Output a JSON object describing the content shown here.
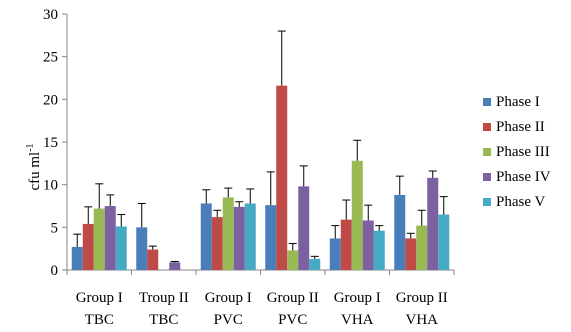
{
  "chart_data": {
    "type": "bar",
    "title": "",
    "xlabel": "",
    "ylabel": "cfu ml",
    "ylabel_superscript": "-1",
    "ylim": [
      0,
      30
    ],
    "yticks": [
      0,
      5,
      10,
      15,
      20,
      25,
      30
    ],
    "grid": false,
    "legend_position": "right",
    "categories": [
      [
        "Group I",
        "TBC"
      ],
      [
        "Troup II",
        "TBC"
      ],
      [
        "Group I",
        "PVC"
      ],
      [
        "Group II",
        "PVC"
      ],
      [
        "Group I",
        "VHA"
      ],
      [
        "Group II",
        "VHA"
      ]
    ],
    "error_bars": "positive only",
    "series": [
      {
        "name": "Phase I",
        "color": "#4a7ebb",
        "values": [
          2.7,
          5.0,
          7.8,
          7.6,
          3.7,
          8.8
        ],
        "errors": [
          1.5,
          2.8,
          1.6,
          3.9,
          1.5,
          2.2
        ]
      },
      {
        "name": "Phase II",
        "color": "#be4b48",
        "values": [
          5.4,
          2.4,
          6.2,
          21.6,
          5.9,
          3.7
        ],
        "errors": [
          2.0,
          0.4,
          0.8,
          6.4,
          2.3,
          0.6
        ]
      },
      {
        "name": "Phase III",
        "color": "#98b954",
        "values": [
          7.2,
          0.0,
          8.5,
          2.3,
          12.8,
          5.2
        ],
        "errors": [
          2.9,
          0.0,
          1.1,
          0.8,
          2.4,
          1.8
        ]
      },
      {
        "name": "Phase IV",
        "color": "#7d60a0",
        "values": [
          7.5,
          0.9,
          7.4,
          9.8,
          5.8,
          10.8
        ],
        "errors": [
          1.3,
          0.1,
          0.6,
          2.4,
          1.8,
          0.8
        ]
      },
      {
        "name": "Phase V",
        "color": "#46aac5",
        "values": [
          5.1,
          0.0,
          7.8,
          1.3,
          4.6,
          6.5
        ],
        "errors": [
          1.4,
          0.0,
          1.7,
          0.3,
          0.6,
          2.1
        ]
      }
    ]
  }
}
